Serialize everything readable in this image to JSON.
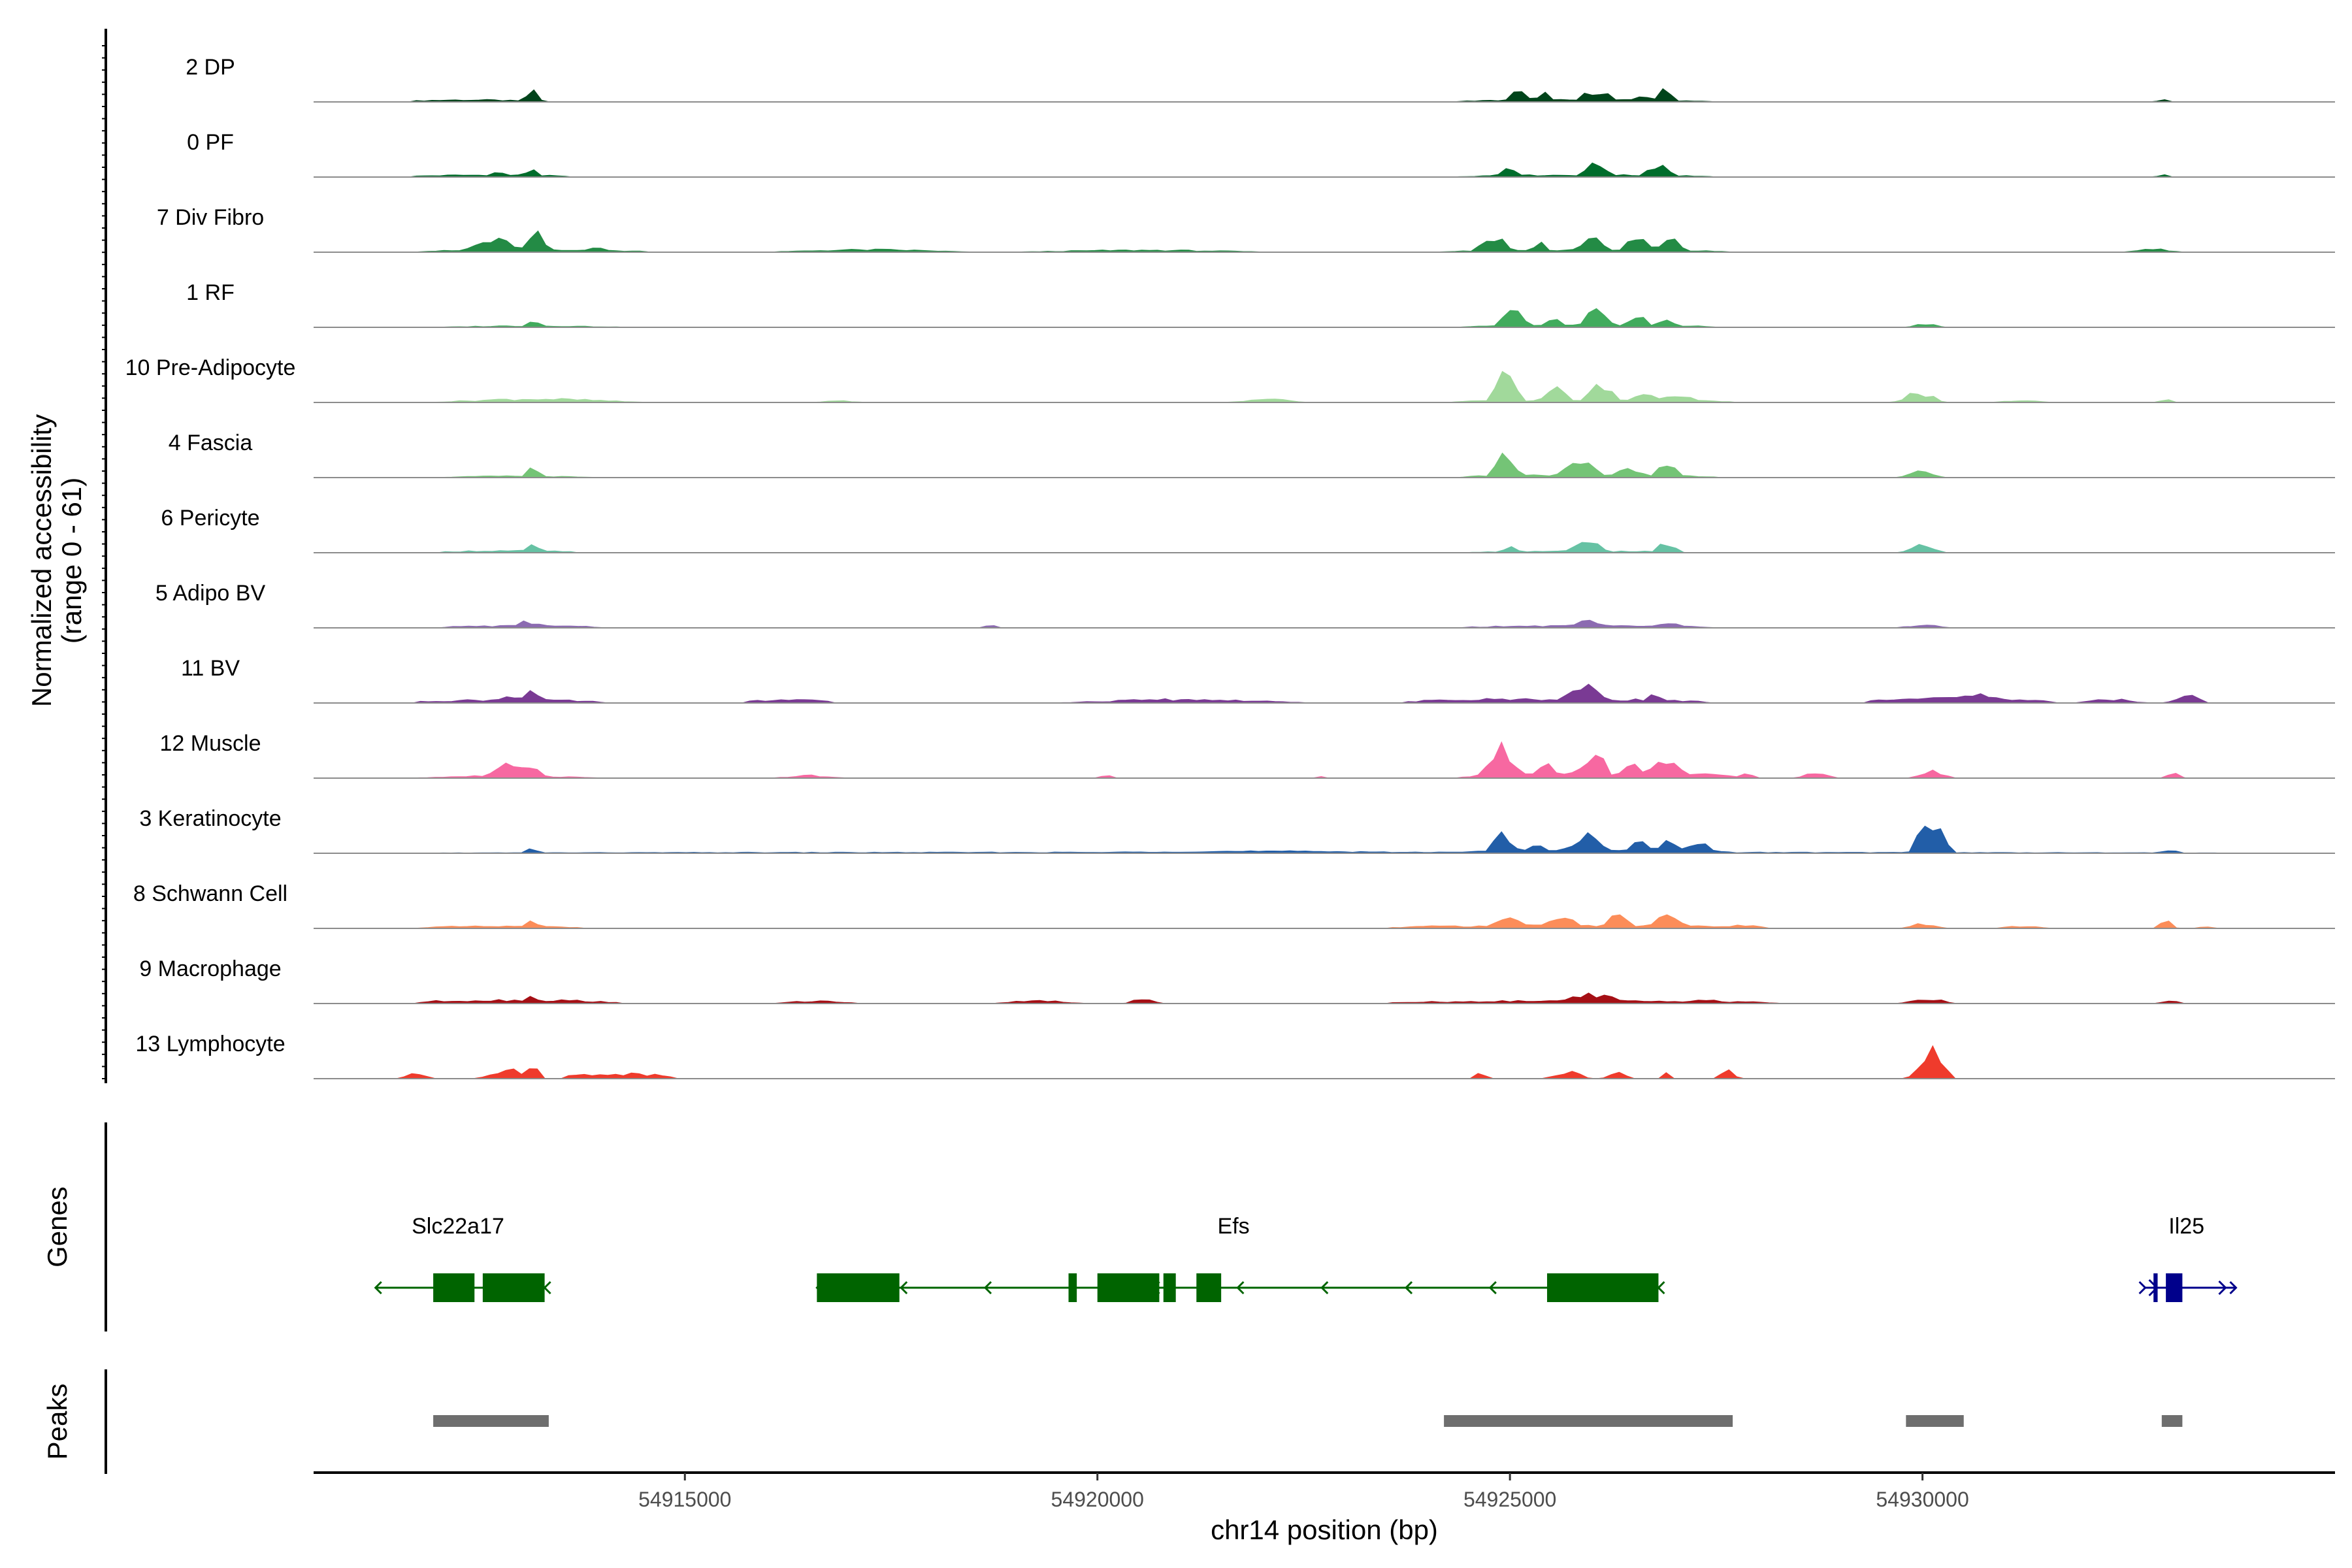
{
  "chart_data": {
    "type": "area",
    "title": "",
    "xlabel": "chr14 position (bp)",
    "ylabel_line1": "Normalized accessibility",
    "ylabel_line2": "(range 0 - 61)",
    "yrange": [
      0,
      61
    ],
    "xlim": [
      54910500,
      54935000
    ],
    "xticks": [
      54915000,
      54920000,
      54925000,
      54930000
    ],
    "xtick_labels": [
      "54915000",
      "54920000",
      "54925000",
      "54930000"
    ],
    "panel_labels": {
      "genes": "Genes",
      "peaks": "Peaks"
    },
    "tracks": [
      {
        "name": "2 DP",
        "color": "#00441b",
        "peaks": [
          [
            54911650,
            54913050,
            4,
            0.9
          ],
          [
            54913000,
            54913300,
            20,
            0.4
          ],
          [
            54924350,
            54927450,
            4,
            1.0
          ],
          [
            54924900,
            54925300,
            20,
            0.6
          ],
          [
            54925250,
            54925550,
            19,
            0.5
          ],
          [
            54925750,
            54926350,
            24,
            0.7
          ],
          [
            54926450,
            54926800,
            13,
            0.6
          ],
          [
            54926700,
            54927050,
            22,
            0.5
          ],
          [
            54932800,
            54933050,
            5,
            0.4
          ]
        ]
      },
      {
        "name": "0 PF",
        "color": "#006d2c",
        "peaks": [
          [
            54911650,
            54913600,
            4,
            0.9
          ],
          [
            54912500,
            54912950,
            9,
            0.5
          ],
          [
            54913000,
            54913300,
            17,
            0.5
          ],
          [
            54924350,
            54927450,
            4,
            1.0
          ],
          [
            54924800,
            54925200,
            23,
            0.6
          ],
          [
            54925750,
            54926350,
            24,
            0.7
          ],
          [
            54926550,
            54927050,
            27,
            0.6
          ],
          [
            54932800,
            54933050,
            4,
            0.4
          ]
        ]
      },
      {
        "name": "7 Div Fibro",
        "color": "#238b45",
        "peaks": [
          [
            54911700,
            54914600,
            4,
            0.9
          ],
          [
            54912200,
            54913200,
            23,
            0.6
          ],
          [
            54913000,
            54913400,
            34,
            0.5
          ],
          [
            54913700,
            54914100,
            13,
            0.5
          ],
          [
            54915800,
            54918700,
            5,
            0.7
          ],
          [
            54918700,
            54922400,
            4,
            0.5
          ],
          [
            54924100,
            54927700,
            4,
            1.0
          ],
          [
            54924500,
            54925100,
            30,
            0.7
          ],
          [
            54925200,
            54925500,
            21,
            0.6
          ],
          [
            54925700,
            54926300,
            29,
            0.7
          ],
          [
            54926300,
            54926800,
            28,
            0.6
          ],
          [
            54926700,
            54927200,
            23,
            0.6
          ],
          [
            54932400,
            54933200,
            6,
            0.6
          ]
        ]
      },
      {
        "name": "1 RF",
        "color": "#41ab5d",
        "peaks": [
          [
            54911700,
            54914600,
            3,
            0.7
          ],
          [
            54913000,
            54913300,
            15,
            0.5
          ],
          [
            54924400,
            54927500,
            4,
            1.0
          ],
          [
            54924800,
            54925300,
            32,
            0.6
          ],
          [
            54925350,
            54925700,
            15,
            0.6
          ],
          [
            54925800,
            54926350,
            34,
            0.7
          ],
          [
            54926350,
            54926750,
            23,
            0.6
          ],
          [
            54926700,
            54927100,
            17,
            0.5
          ],
          [
            54929800,
            54930300,
            8,
            0.5
          ]
        ]
      },
      {
        "name": "10 Pre-Adipocyte",
        "color": "#a1d99b",
        "peaks": [
          [
            54911700,
            54914700,
            7,
            0.7
          ],
          [
            54916500,
            54917200,
            4,
            0.6
          ],
          [
            54921500,
            54922600,
            6,
            0.6
          ],
          [
            54924300,
            54927700,
            5,
            1.0
          ],
          [
            54924700,
            54925200,
            61,
            0.5
          ],
          [
            54925300,
            54925800,
            27,
            0.6
          ],
          [
            54925800,
            54926400,
            31,
            0.7
          ],
          [
            54926400,
            54926900,
            22,
            0.6
          ],
          [
            54926800,
            54927300,
            19,
            0.6
          ],
          [
            54929600,
            54930300,
            18,
            0.6
          ],
          [
            54930800,
            54931600,
            4,
            0.6
          ],
          [
            54932800,
            54933100,
            5,
            0.4
          ]
        ]
      },
      {
        "name": "4 Fascia",
        "color": "#74c476",
        "peaks": [
          [
            54911700,
            54914200,
            3,
            0.7
          ],
          [
            54913000,
            54913300,
            19,
            0.5
          ],
          [
            54924400,
            54927500,
            6,
            1.0
          ],
          [
            54924700,
            54925200,
            46,
            0.6
          ],
          [
            54925500,
            54926200,
            27,
            0.7
          ],
          [
            54926200,
            54926700,
            22,
            0.6
          ],
          [
            54926700,
            54927100,
            26,
            0.5
          ],
          [
            54929700,
            54930300,
            15,
            0.6
          ]
        ]
      },
      {
        "name": "6 Pericyte",
        "color": "#66c2a4",
        "peaks": [
          [
            54912000,
            54913700,
            4,
            0.9
          ],
          [
            54913000,
            54913300,
            15,
            0.5
          ],
          [
            54924500,
            54927200,
            3,
            1.0
          ],
          [
            54924800,
            54925200,
            12,
            0.6
          ],
          [
            54925600,
            54926300,
            20,
            0.7
          ],
          [
            54926700,
            54927100,
            19,
            0.5
          ],
          [
            54929700,
            54930300,
            14,
            0.6
          ]
        ]
      },
      {
        "name": "5 Adipo BV",
        "color": "#8c6bb1",
        "peaks": [
          [
            54912000,
            54914000,
            4,
            0.9
          ],
          [
            54912800,
            54913400,
            12,
            0.6
          ],
          [
            54918600,
            54918800,
            6,
            0.4
          ],
          [
            54924400,
            54927500,
            4,
            1.0
          ],
          [
            54925600,
            54926300,
            14,
            0.7
          ],
          [
            54926600,
            54927300,
            8,
            0.5
          ],
          [
            54929600,
            54930400,
            5,
            0.6
          ]
        ]
      },
      {
        "name": "11 BV",
        "color": "#7a3a94",
        "peaks": [
          [
            54911700,
            54914000,
            6,
            0.8
          ],
          [
            54912500,
            54913400,
            15,
            0.6
          ],
          [
            54913000,
            54913300,
            25,
            0.5
          ],
          [
            54915700,
            54916800,
            6,
            0.8
          ],
          [
            54919300,
            54922800,
            7,
            0.6
          ],
          [
            54923700,
            54927400,
            8,
            1.0
          ],
          [
            54925500,
            54926300,
            30,
            0.7
          ],
          [
            54926500,
            54927000,
            14,
            0.5
          ],
          [
            54929300,
            54931600,
            10,
            0.8
          ],
          [
            54930300,
            54930900,
            22,
            0.5
          ],
          [
            54931800,
            54932800,
            7,
            0.6
          ],
          [
            54932900,
            54933500,
            14,
            0.6
          ]
        ]
      },
      {
        "name": "12 Muscle",
        "color": "#f768a1",
        "peaks": [
          [
            54911500,
            54914200,
            5,
            0.7
          ],
          [
            54912500,
            54913400,
            27,
            0.6
          ],
          [
            54913000,
            54913300,
            33,
            0.5
          ],
          [
            54916000,
            54917000,
            5,
            0.6
          ],
          [
            54920000,
            54920200,
            8,
            0.4
          ],
          [
            54922600,
            54922800,
            5,
            0.4
          ],
          [
            54924400,
            54927800,
            10,
            1.0
          ],
          [
            54924600,
            54925200,
            70,
            0.6
          ],
          [
            54925200,
            54925700,
            28,
            0.6
          ],
          [
            54925700,
            54926300,
            47,
            0.7
          ],
          [
            54926300,
            54926700,
            30,
            0.6
          ],
          [
            54926600,
            54927200,
            44,
            0.6
          ],
          [
            54927700,
            54928000,
            14,
            0.5
          ],
          [
            54928400,
            54929000,
            9,
            0.5
          ],
          [
            54929800,
            54930400,
            14,
            0.5
          ],
          [
            54932900,
            54933200,
            10,
            0.4
          ]
        ]
      },
      {
        "name": "3 Keratinocyte",
        "color": "#225ea8",
        "peaks": [
          [
            54911500,
            54934000,
            2,
            1.0
          ],
          [
            54913000,
            54913300,
            9,
            0.5
          ],
          [
            54920000,
            54924000,
            4,
            0.9
          ],
          [
            54924300,
            54927700,
            9,
            1.0
          ],
          [
            54924700,
            54925100,
            41,
            0.6
          ],
          [
            54925100,
            54925500,
            15,
            0.6
          ],
          [
            54925600,
            54926300,
            33,
            0.7
          ],
          [
            54926300,
            54926800,
            21,
            0.6
          ],
          [
            54926700,
            54927100,
            25,
            0.5
          ],
          [
            54927100,
            54927500,
            28,
            0.5
          ],
          [
            54929800,
            54930400,
            62,
            0.6
          ],
          [
            54932800,
            54933200,
            6,
            0.4
          ]
        ]
      },
      {
        "name": "8 Schwann Cell",
        "color": "#fc8d59",
        "peaks": [
          [
            54911700,
            54913800,
            4,
            0.9
          ],
          [
            54913000,
            54913300,
            13,
            0.5
          ],
          [
            54923500,
            54927800,
            6,
            1.0
          ],
          [
            54924700,
            54925200,
            30,
            0.6
          ],
          [
            54925300,
            54926000,
            19,
            0.7
          ],
          [
            54926000,
            54926600,
            22,
            0.6
          ],
          [
            54926600,
            54927200,
            24,
            0.6
          ],
          [
            54927400,
            54928200,
            7,
            0.6
          ],
          [
            54929700,
            54930300,
            9,
            0.5
          ],
          [
            54930800,
            54931600,
            4,
            0.6
          ],
          [
            54932800,
            54933100,
            13,
            0.4
          ],
          [
            54933300,
            54933600,
            4,
            0.4
          ]
        ]
      },
      {
        "name": "9 Macrophage",
        "color": "#a50f15",
        "peaks": [
          [
            54911700,
            54914200,
            7,
            0.8
          ],
          [
            54913000,
            54913300,
            15,
            0.5
          ],
          [
            54916000,
            54917200,
            5,
            0.7
          ],
          [
            54918600,
            54920000,
            5,
            0.6
          ],
          [
            54920300,
            54920800,
            8,
            0.5
          ],
          [
            54923500,
            54928300,
            5,
            1.0
          ],
          [
            54925300,
            54926700,
            17,
            0.7
          ],
          [
            54927100,
            54927700,
            9,
            0.5
          ],
          [
            54929700,
            54930400,
            11,
            0.5
          ],
          [
            54932800,
            54933200,
            6,
            0.4
          ]
        ]
      },
      {
        "name": "13 Lymphocyte",
        "color": "#ef3b2c",
        "peaks": [
          [
            54911500,
            54912000,
            9,
            0.5
          ],
          [
            54912400,
            54913300,
            16,
            0.6
          ],
          [
            54913000,
            54913300,
            25,
            0.5
          ],
          [
            54913500,
            54914900,
            10,
            0.8
          ],
          [
            54924500,
            54924800,
            12,
            0.4
          ],
          [
            54925400,
            54926000,
            15,
            0.6
          ],
          [
            54926100,
            54926500,
            13,
            0.5
          ],
          [
            54926800,
            54927000,
            13,
            0.4
          ],
          [
            54927500,
            54927800,
            18,
            0.4
          ],
          [
            54929800,
            54930400,
            84,
            0.6
          ]
        ]
      }
    ],
    "genes": [
      {
        "name": "Slc22a17",
        "color": "#006400",
        "strand": "-",
        "start": 54911250,
        "end": 54913300,
        "label_pos": 54912250,
        "exons": [
          [
            54911950,
            54912450
          ],
          [
            54912550,
            54913300
          ]
        ]
      },
      {
        "name": "Efs",
        "color": "#006400",
        "strand": "-",
        "start": 54916600,
        "end": 54926800,
        "label_pos": 54921650,
        "exons": [
          [
            54916600,
            54917600
          ],
          [
            54919650,
            54919750
          ],
          [
            54920000,
            54920750
          ],
          [
            54920800,
            54920950
          ],
          [
            54921200,
            54921500
          ],
          [
            54925450,
            54926800
          ]
        ]
      },
      {
        "name": "Il25",
        "color": "#00008b",
        "strand": "+",
        "start": 54932700,
        "end": 54933800,
        "label_pos": 54933200,
        "exons": [
          [
            54932800,
            54932850
          ],
          [
            54932950,
            54933150
          ]
        ]
      }
    ],
    "peaks": [
      [
        54911950,
        54913350
      ],
      [
        54924200,
        54927700
      ],
      [
        54929800,
        54930500
      ],
      [
        54932900,
        54933150
      ]
    ]
  }
}
